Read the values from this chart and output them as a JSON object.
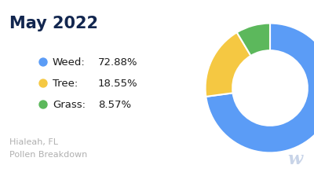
{
  "title": "May 2022",
  "subtitle_line1": "Hialeah, FL",
  "subtitle_line2": "Pollen Breakdown",
  "categories": [
    "Weed",
    "Tree",
    "Grass"
  ],
  "values": [
    72.88,
    18.55,
    8.57
  ],
  "colors": [
    "#5B9CF6",
    "#F5C842",
    "#5CB85C"
  ],
  "labels": [
    "72.88%",
    "18.55%",
    "8.57%"
  ],
  "background_color": "#ffffff",
  "title_color": "#12264F",
  "legend_label_color": "#1a1a1a",
  "subtitle_color": "#b0b0b0",
  "watermark_color": "#c8d4e8",
  "donut_width": 0.42,
  "start_angle": 90
}
